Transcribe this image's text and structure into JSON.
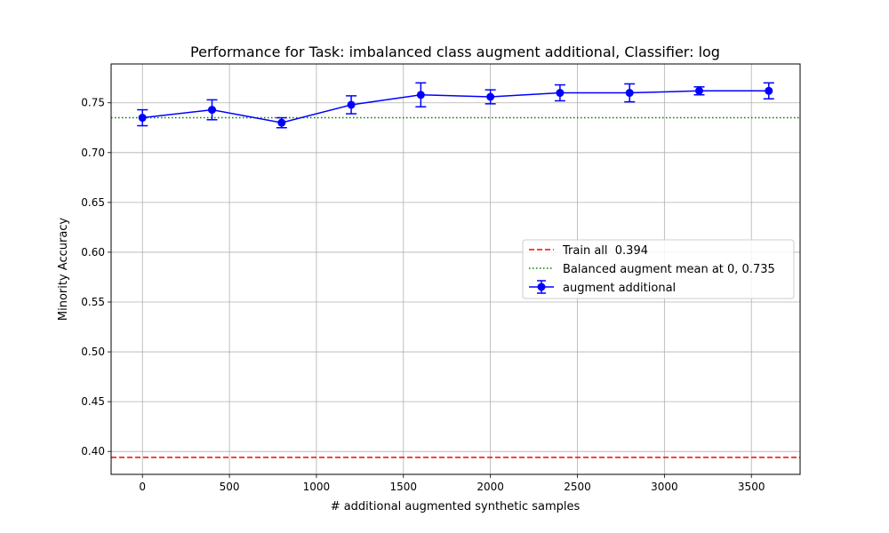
{
  "chart_data": {
    "type": "line",
    "title": "Performance for Task: imbalanced class augment additional, Classifier: log",
    "xlabel": "# additional augmented synthetic samples",
    "ylabel": "Minority Accuracy",
    "xlim": [
      -180,
      3780
    ],
    "ylim": [
      0.377,
      0.789
    ],
    "xticks": [
      0,
      500,
      1000,
      1500,
      2000,
      2500,
      3000,
      3500
    ],
    "xtick_labels": [
      "0",
      "500",
      "1000",
      "1500",
      "2000",
      "2500",
      "3000",
      "3500"
    ],
    "yticks": [
      0.4,
      0.45,
      0.5,
      0.55,
      0.6,
      0.65,
      0.7,
      0.75
    ],
    "ytick_labels": [
      "0.40",
      "0.45",
      "0.50",
      "0.55",
      "0.60",
      "0.65",
      "0.70",
      "0.75"
    ],
    "grid": true,
    "legend_position": "center-right",
    "series": [
      {
        "name": "augment additional",
        "color": "#0000ff",
        "marker": "circle",
        "x": [
          0,
          400,
          800,
          1200,
          1600,
          2000,
          2400,
          2800,
          3200,
          3600
        ],
        "y": [
          0.735,
          0.743,
          0.73,
          0.748,
          0.758,
          0.756,
          0.76,
          0.76,
          0.762,
          0.762
        ],
        "err": [
          0.008,
          0.01,
          0.005,
          0.009,
          0.012,
          0.007,
          0.008,
          0.009,
          0.004,
          0.008
        ]
      }
    ],
    "reference_lines": [
      {
        "name": "Train all  0.394",
        "value": 0.394,
        "color": "#ff0000",
        "style": "dashed"
      },
      {
        "name": "Balanced augment mean at 0, 0.735",
        "value": 0.735,
        "color": "#008000",
        "style": "dotted"
      }
    ]
  }
}
